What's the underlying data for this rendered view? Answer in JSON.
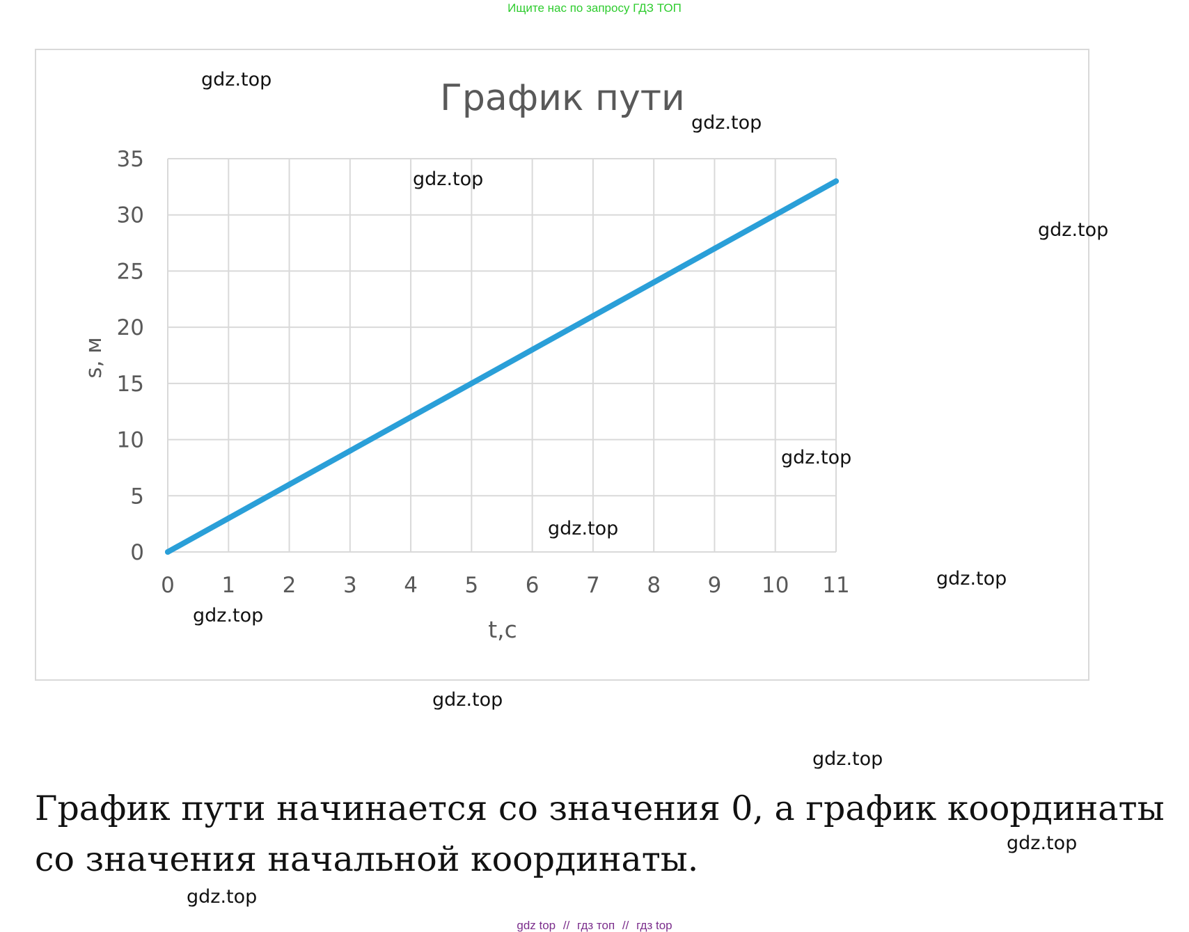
{
  "banner": {
    "text": "Ищите нас по запросу ГДЗ ТОП",
    "color": "#2ecc2e"
  },
  "chart_data": {
    "type": "line",
    "title": "График пути",
    "xlabel": "t,c",
    "ylabel": "s, м",
    "x": [
      0,
      1,
      2,
      3,
      4,
      5,
      6,
      7,
      8,
      9,
      10,
      11
    ],
    "series": [
      {
        "values": [
          0,
          3,
          6,
          9,
          12,
          15,
          18,
          21,
          24,
          27,
          30,
          33
        ],
        "color": "#2a9fd8"
      }
    ],
    "xlim": [
      0,
      11
    ],
    "ylim": [
      0,
      35
    ],
    "xticks": [
      "0",
      "1",
      "2",
      "3",
      "4",
      "5",
      "6",
      "7",
      "8",
      "9",
      "10",
      "11"
    ],
    "yticks": [
      "0",
      "5",
      "10",
      "15",
      "20",
      "25",
      "30",
      "35"
    ],
    "grid": true,
    "legend": "none"
  },
  "watermarks": [
    "gdz.top",
    "gdz.top",
    "gdz.top",
    "gdz.top",
    "gdz.top",
    "gdz.top",
    "gdz.top",
    "gdz.top",
    "gdz.top",
    "gdz.top",
    "gdz.top",
    "gdz.top"
  ],
  "explanation": {
    "text": "График пути начинается со значения 0, а график координаты со значения начальной координаты."
  },
  "footer": {
    "link1": "gdz top",
    "sep1": "//",
    "link2": "гдз топ",
    "sep2": "//",
    "link3": "гдз top",
    "color": "#7b2e8c"
  },
  "colors": {
    "grid": "#d9d9d9",
    "axis_text": "#595959",
    "title_text": "#595959"
  }
}
